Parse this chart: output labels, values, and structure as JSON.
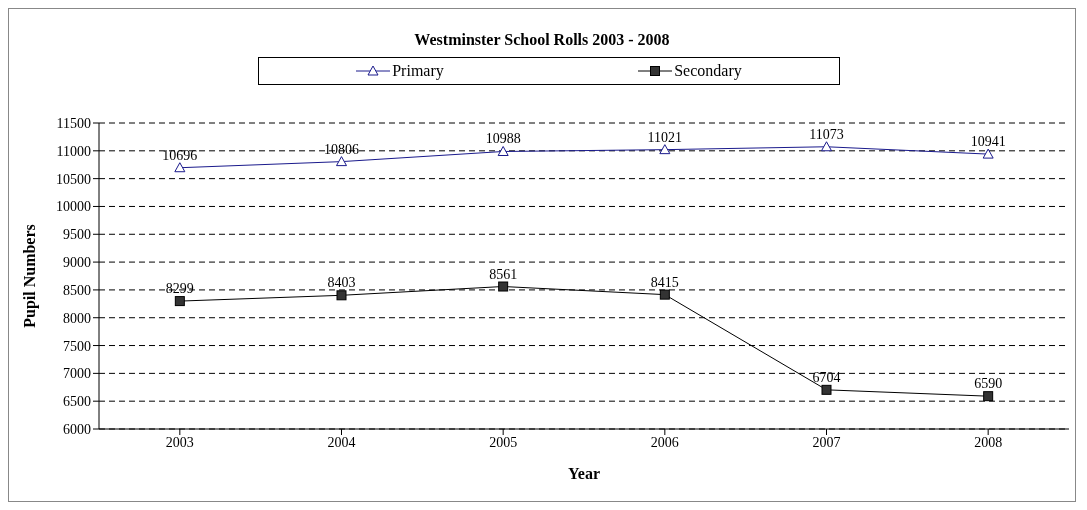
{
  "chart_data": {
    "type": "line",
    "title": "Westminster School Rolls 2003 - 2008",
    "xlabel": "Year",
    "ylabel": "Pupil Numbers",
    "categories": [
      "2003",
      "2004",
      "2005",
      "2006",
      "2007",
      "2008"
    ],
    "series": [
      {
        "name": "Primary",
        "color": "#1a1a8c",
        "marker": "triangle",
        "values": [
          10696,
          10806,
          10988,
          11021,
          11073,
          10941
        ]
      },
      {
        "name": "Secondary",
        "color": "#000000",
        "marker": "square",
        "values": [
          8299,
          8403,
          8561,
          8415,
          6704,
          6590
        ]
      }
    ],
    "ylim": [
      6000,
      11500
    ],
    "yticks": [
      6000,
      6500,
      7000,
      7500,
      8000,
      8500,
      9000,
      9500,
      10000,
      10500,
      11000,
      11500
    ],
    "grid": "y",
    "legend": "top",
    "data_labels": true
  }
}
